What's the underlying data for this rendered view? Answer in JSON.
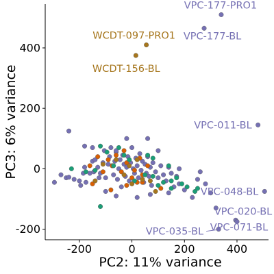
{
  "chart_data": {
    "type": "scatter",
    "xlabel": "PC2: 11% variance",
    "ylabel": "PC3: 6% variance",
    "xlim": [
      -330,
      520
    ],
    "ylim": [
      -235,
      545
    ],
    "xticks": [
      -200,
      0,
      200,
      400
    ],
    "yticks": [
      -200,
      0,
      200,
      400
    ],
    "grid": false,
    "legend": "none",
    "groups": [
      {
        "color": "#7570b3",
        "points": [
          [
            -295,
            -45
          ],
          [
            -270,
            -20
          ],
          [
            -250,
            -30
          ],
          [
            -240,
            -28
          ],
          [
            -220,
            -35
          ],
          [
            -200,
            -40
          ],
          [
            -195,
            -55
          ],
          [
            -185,
            -15
          ],
          [
            -180,
            5
          ],
          [
            -175,
            -45
          ],
          [
            -160,
            -15
          ],
          [
            -150,
            25
          ],
          [
            -145,
            -10
          ],
          [
            -140,
            30
          ],
          [
            -130,
            5
          ],
          [
            -125,
            -30
          ],
          [
            -120,
            -15
          ],
          [
            -110,
            20
          ],
          [
            -105,
            60
          ],
          [
            -100,
            -30
          ],
          [
            -90,
            15
          ],
          [
            -85,
            40
          ],
          [
            -80,
            70
          ],
          [
            -75,
            10
          ],
          [
            -70,
            -20
          ],
          [
            -65,
            25
          ],
          [
            -60,
            55
          ],
          [
            -55,
            -35
          ],
          [
            -50,
            0
          ],
          [
            -45,
            30
          ],
          [
            -40,
            -60
          ],
          [
            -35,
            45
          ],
          [
            -30,
            15
          ],
          [
            -25,
            -25
          ],
          [
            -20,
            5
          ],
          [
            -15,
            40
          ],
          [
            -10,
            -40
          ],
          [
            -5,
            20
          ],
          [
            0,
            70
          ],
          [
            5,
            0
          ],
          [
            10,
            -15
          ],
          [
            15,
            35
          ],
          [
            20,
            10
          ],
          [
            25,
            -30
          ],
          [
            30,
            50
          ],
          [
            35,
            -5
          ],
          [
            40,
            25
          ],
          [
            45,
            -45
          ],
          [
            50,
            15
          ],
          [
            55,
            -15
          ],
          [
            60,
            40
          ],
          [
            65,
            -25
          ],
          [
            70,
            5
          ],
          [
            75,
            -55
          ],
          [
            80,
            20
          ],
          [
            90,
            -10
          ],
          [
            100,
            -30
          ],
          [
            110,
            10
          ],
          [
            120,
            -20
          ],
          [
            130,
            -40
          ],
          [
            140,
            5
          ],
          [
            150,
            -15
          ],
          [
            160,
            -60
          ],
          [
            170,
            -25
          ],
          [
            180,
            0
          ],
          [
            -240,
            125
          ],
          [
            -180,
            75
          ],
          [
            -150,
            70
          ],
          [
            -60,
            60
          ],
          [
            -20,
            100
          ],
          [
            60,
            100
          ],
          [
            100,
            60
          ],
          [
            -100,
            -75
          ],
          [
            -60,
            -90
          ],
          [
            20,
            -95
          ],
          [
            70,
            -85
          ],
          [
            140,
            -80
          ],
          [
            180,
            -50
          ],
          [
            200,
            -70
          ],
          [
            230,
            -95
          ],
          [
            250,
            -35
          ],
          [
            260,
            -10
          ],
          [
            280,
            -50
          ],
          [
            300,
            -80
          ],
          [
            320,
            -130
          ]
        ]
      },
      {
        "color": "#d95f02",
        "points": [
          [
            -160,
            10
          ],
          [
            -130,
            40
          ],
          [
            -110,
            -10
          ],
          [
            -90,
            30
          ],
          [
            -75,
            10
          ],
          [
            -60,
            45
          ],
          [
            -40,
            -10
          ],
          [
            -30,
            60
          ],
          [
            -20,
            20
          ],
          [
            0,
            -30
          ],
          [
            10,
            -5
          ],
          [
            20,
            -45
          ],
          [
            30,
            35
          ],
          [
            40,
            -20
          ],
          [
            60,
            10
          ],
          [
            -150,
            -50
          ],
          [
            -80,
            -70
          ],
          [
            -20,
            -55
          ],
          [
            40,
            -45
          ],
          [
            110,
            -65
          ]
        ]
      },
      {
        "color": "#1b9e77",
        "points": [
          [
            -230,
            0
          ],
          [
            -175,
            -10
          ],
          [
            -140,
            -5
          ],
          [
            -120,
            75
          ],
          [
            -95,
            55
          ],
          [
            -70,
            10
          ],
          [
            -50,
            70
          ],
          [
            -30,
            45
          ],
          [
            -10,
            30
          ],
          [
            10,
            -40
          ],
          [
            50,
            -20
          ],
          [
            80,
            -25
          ],
          [
            100,
            -55
          ],
          [
            120,
            -45
          ],
          [
            140,
            10
          ],
          [
            150,
            -40
          ],
          [
            170,
            -30
          ],
          [
            190,
            -50
          ],
          [
            210,
            -60
          ],
          [
            240,
            -75
          ],
          [
            250,
            -65
          ],
          [
            -120,
            -125
          ],
          [
            60,
            45
          ],
          [
            80,
            35
          ],
          [
            150,
            -65
          ]
        ]
      },
      {
        "color": "#a6761d",
        "points": [
          [
            -110,
            15
          ],
          [
            -60,
            30
          ],
          [
            -30,
            -20
          ],
          [
            -10,
            10
          ],
          [
            20,
            30
          ],
          [
            40,
            -35
          ],
          [
            70,
            -40
          ],
          [
            -140,
            -40
          ],
          [
            0,
            -50
          ],
          [
            90,
            -75
          ]
        ]
      }
    ],
    "labeled_points": [
      {
        "label": "VPC-177-PRO1",
        "x": 340,
        "y": 510,
        "color": "#7570b3"
      },
      {
        "label": "VPC-177-BL",
        "x": 275,
        "y": 465,
        "color": "#7570b3"
      },
      {
        "label": "WCDT-097-PRO1",
        "x": 55,
        "y": 410,
        "color": "#a6761d"
      },
      {
        "label": "WCDT-156-BL",
        "x": 15,
        "y": 375,
        "color": "#a6761d"
      },
      {
        "label": "VPC-011-BL",
        "x": 480,
        "y": 145,
        "color": "#7570b3"
      },
      {
        "label": "VPC-048-BL",
        "x": 505,
        "y": -75,
        "color": "#7570b3"
      },
      {
        "label": "VPC-020-BL",
        "x": 395,
        "y": -170,
        "color": "#7570b3"
      },
      {
        "label": "VPC-035-BL",
        "x": 330,
        "y": -200,
        "color": "#7570b3"
      },
      {
        "label": "VPC-071-BL",
        "x": 400,
        "y": -175,
        "color": "#7570b3"
      }
    ]
  }
}
